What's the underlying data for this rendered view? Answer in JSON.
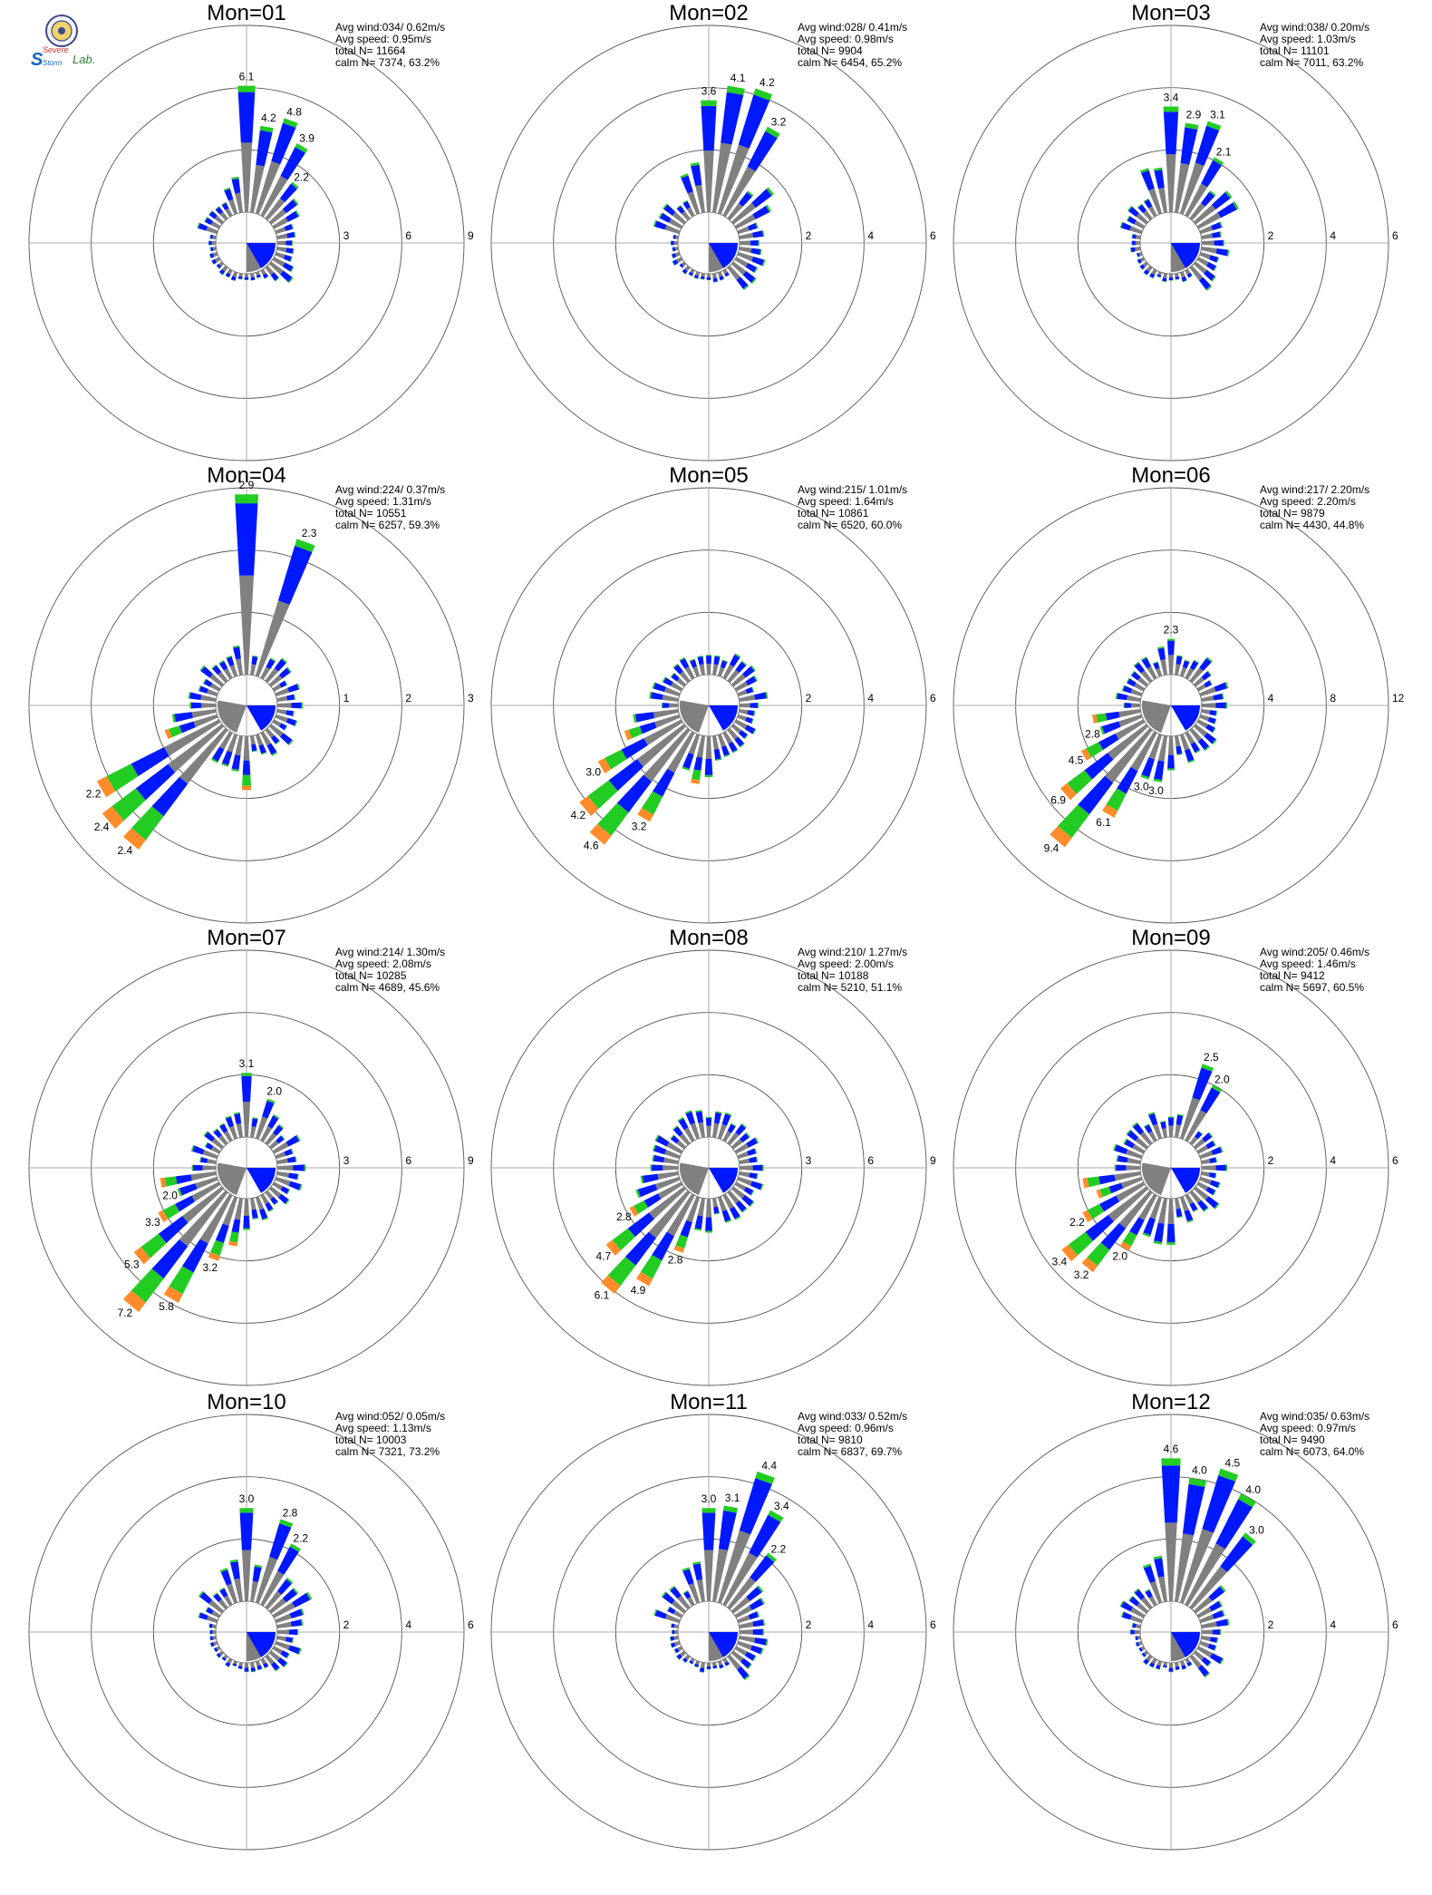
{
  "logo": {
    "text_top": "Severe",
    "text_mid": "Storm",
    "text_right": "Lab.",
    "colors": {
      "S": "#1565c0",
      "evere": "#d32f2f",
      "torm": "#1565c0",
      "lab": "#2e7d32"
    },
    "icon": "university-seal-icon"
  },
  "sector_colors": {
    "gray": "#808080",
    "blue": "#0018ff",
    "green": "#22cc22",
    "orange": "#ff8c2a",
    "red": "#ff2020",
    "purple": "#a020c0"
  },
  "chart_data": [
    {
      "type": "windrose",
      "title": "Mon=01",
      "rmax": 9,
      "ticks": [
        "3",
        "6",
        "9"
      ],
      "stats": {
        "avg_wind": "Avg wind:034/ 0.62m/s",
        "avg_speed": "Avg speed: 0.95m/s",
        "total_n": "total N=      11664",
        "calm_n": "calm N=    7374,  63.2%"
      },
      "labels": [
        {
          "dir": 0,
          "value": "6.1"
        },
        {
          "dir": 10,
          "value": "4.2"
        },
        {
          "dir": 20,
          "value": "4.8"
        },
        {
          "dir": 30,
          "value": "3.9"
        },
        {
          "dir": 40,
          "value": "2.2"
        }
      ]
    },
    {
      "type": "windrose",
      "title": "Mon=02",
      "rmax": 6,
      "ticks": [
        "2",
        "4",
        "6"
      ],
      "stats": {
        "avg_wind": "Avg wind:028/ 0.41m/s",
        "avg_speed": "Avg speed: 0.98m/s",
        "total_n": "total N=       9904",
        "calm_n": "calm N=    6454,  65.2%"
      },
      "labels": [
        {
          "dir": 0,
          "value": "3.6"
        },
        {
          "dir": 10,
          "value": "4.1"
        },
        {
          "dir": 20,
          "value": "4.2"
        },
        {
          "dir": 30,
          "value": "3.2"
        }
      ]
    },
    {
      "type": "windrose",
      "title": "Mon=03",
      "rmax": 6,
      "ticks": [
        "2",
        "4",
        "6"
      ],
      "stats": {
        "avg_wind": "Avg wind:038/ 0.20m/s",
        "avg_speed": "Avg speed: 1.03m/s",
        "total_n": "total N=      11101",
        "calm_n": "calm N=    7011,  63.2%"
      },
      "labels": [
        {
          "dir": 0,
          "value": "3.4"
        },
        {
          "dir": 10,
          "value": "2.9"
        },
        {
          "dir": 20,
          "value": "3.1"
        },
        {
          "dir": 30,
          "value": "2.1"
        }
      ]
    },
    {
      "type": "windrose",
      "title": "Mon=04",
      "rmax": 3,
      "ticks": [
        "1",
        "2",
        "3"
      ],
      "stats": {
        "avg_wind": "Avg wind:224/ 0.37m/s",
        "avg_speed": "Avg speed: 1.31m/s",
        "total_n": "total N=      10551",
        "calm_n": "calm N=    6257,  59.3%"
      },
      "labels": [
        {
          "dir": 0,
          "value": "2.9"
        },
        {
          "dir": 20,
          "value": "2.3"
        },
        {
          "dir": 240,
          "value": "2.2"
        },
        {
          "dir": 230,
          "value": "2.4"
        },
        {
          "dir": 220,
          "value": "2.4"
        }
      ]
    },
    {
      "type": "windrose",
      "title": "Mon=05",
      "rmax": 6,
      "ticks": [
        "2",
        "4",
        "6"
      ],
      "stats": {
        "avg_wind": "Avg wind:215/ 1.01m/s",
        "avg_speed": "Avg speed: 1.64m/s",
        "total_n": "total N=      10861",
        "calm_n": "calm N=    6520,  60.0%"
      },
      "labels": [
        {
          "dir": 240,
          "value": "3.0"
        },
        {
          "dir": 230,
          "value": "4.2"
        },
        {
          "dir": 220,
          "value": "4.6"
        },
        {
          "dir": 210,
          "value": "3.2"
        }
      ]
    },
    {
      "type": "windrose",
      "title": "Mon=06",
      "rmax": 12,
      "ticks": [
        "4",
        "8",
        "12"
      ],
      "stats": {
        "avg_wind": "Avg wind:217/ 2.20m/s",
        "avg_speed": "Avg speed: 2.20m/s",
        "total_n": "total N=       9879",
        "calm_n": "calm N=    4430,  44.8%"
      },
      "labels": [
        {
          "dir": 0,
          "value": "2.3"
        },
        {
          "dir": 250,
          "value": "2.8"
        },
        {
          "dir": 240,
          "value": "4.5"
        },
        {
          "dir": 230,
          "value": "6.9"
        },
        {
          "dir": 220,
          "value": "9.4"
        },
        {
          "dir": 210,
          "value": "6.1"
        },
        {
          "dir": 200,
          "value": "3.0"
        },
        {
          "dir": 190,
          "value": "3.0"
        }
      ]
    },
    {
      "type": "windrose",
      "title": "Mon=07",
      "rmax": 9,
      "ticks": [
        "3",
        "6",
        "9"
      ],
      "stats": {
        "avg_wind": "Avg wind:214/ 1.30m/s",
        "avg_speed": "Avg speed: 2.08m/s",
        "total_n": "total N=      10285",
        "calm_n": "calm N=    4689,  45.6%"
      },
      "labels": [
        {
          "dir": 0,
          "value": "3.1"
        },
        {
          "dir": 20,
          "value": "2.0"
        },
        {
          "dir": 250,
          "value": "2.0"
        },
        {
          "dir": 240,
          "value": "3.3"
        },
        {
          "dir": 230,
          "value": "5.3"
        },
        {
          "dir": 220,
          "value": "7.2"
        },
        {
          "dir": 210,
          "value": "5.8"
        },
        {
          "dir": 200,
          "value": "3.2"
        }
      ]
    },
    {
      "type": "windrose",
      "title": "Mon=08",
      "rmax": 9,
      "ticks": [
        "3",
        "6",
        "9"
      ],
      "stats": {
        "avg_wind": "Avg wind:210/ 1.27m/s",
        "avg_speed": "Avg speed: 2.00m/s",
        "total_n": "total N=      10188",
        "calm_n": "calm N=    5210,  51.1%"
      },
      "labels": [
        {
          "dir": 240,
          "value": "2.8"
        },
        {
          "dir": 230,
          "value": "4.7"
        },
        {
          "dir": 220,
          "value": "6.1"
        },
        {
          "dir": 210,
          "value": "4.9"
        },
        {
          "dir": 200,
          "value": "2.8"
        }
      ]
    },
    {
      "type": "windrose",
      "title": "Mon=09",
      "rmax": 6,
      "ticks": [
        "2",
        "4",
        "6"
      ],
      "stats": {
        "avg_wind": "Avg wind:205/ 0.46m/s",
        "avg_speed": "Avg speed: 1.46m/s",
        "total_n": "total N=       9412",
        "calm_n": "calm N=    5697,  60.5%"
      },
      "labels": [
        {
          "dir": 20,
          "value": "2.5"
        },
        {
          "dir": 30,
          "value": "2.0"
        },
        {
          "dir": 240,
          "value": "2.2"
        },
        {
          "dir": 230,
          "value": "3.4"
        },
        {
          "dir": 220,
          "value": "3.2"
        },
        {
          "dir": 210,
          "value": "2.0"
        }
      ]
    },
    {
      "type": "windrose",
      "title": "Mon=10",
      "rmax": 6,
      "ticks": [
        "2",
        "4",
        "6"
      ],
      "stats": {
        "avg_wind": "Avg wind:052/ 0.05m/s",
        "avg_speed": "Avg speed: 1.13m/s",
        "total_n": "total N=      10003",
        "calm_n": "calm N=    7321,  73.2%"
      },
      "labels": [
        {
          "dir": 0,
          "value": "3.0"
        },
        {
          "dir": 20,
          "value": "2.8"
        },
        {
          "dir": 30,
          "value": "2.2"
        }
      ]
    },
    {
      "type": "windrose",
      "title": "Mon=11",
      "rmax": 6,
      "ticks": [
        "2",
        "4",
        "6"
      ],
      "stats": {
        "avg_wind": "Avg wind:033/ 0.52m/s",
        "avg_speed": "Avg speed: 0.96m/s",
        "total_n": "total N=       9810",
        "calm_n": "calm N=    6837,  69.7%"
      },
      "labels": [
        {
          "dir": 0,
          "value": "3.0"
        },
        {
          "dir": 10,
          "value": "3.1"
        },
        {
          "dir": 20,
          "value": "4.4"
        },
        {
          "dir": 30,
          "value": "3.4"
        },
        {
          "dir": 40,
          "value": "2.2"
        }
      ]
    },
    {
      "type": "windrose",
      "title": "Mon=12",
      "rmax": 6,
      "ticks": [
        "2",
        "4",
        "6"
      ],
      "stats": {
        "avg_wind": "Avg wind:035/ 0.63m/s",
        "avg_speed": "Avg speed: 0.97m/s",
        "total_n": "total N=       9490",
        "calm_n": "calm N=    6073,  64.0%"
      },
      "labels": [
        {
          "dir": 0,
          "value": "4.6"
        },
        {
          "dir": 10,
          "value": "4.0"
        },
        {
          "dir": 20,
          "value": "4.5"
        },
        {
          "dir": 30,
          "value": "4.0"
        },
        {
          "dir": 40,
          "value": "3.0"
        }
      ]
    }
  ]
}
